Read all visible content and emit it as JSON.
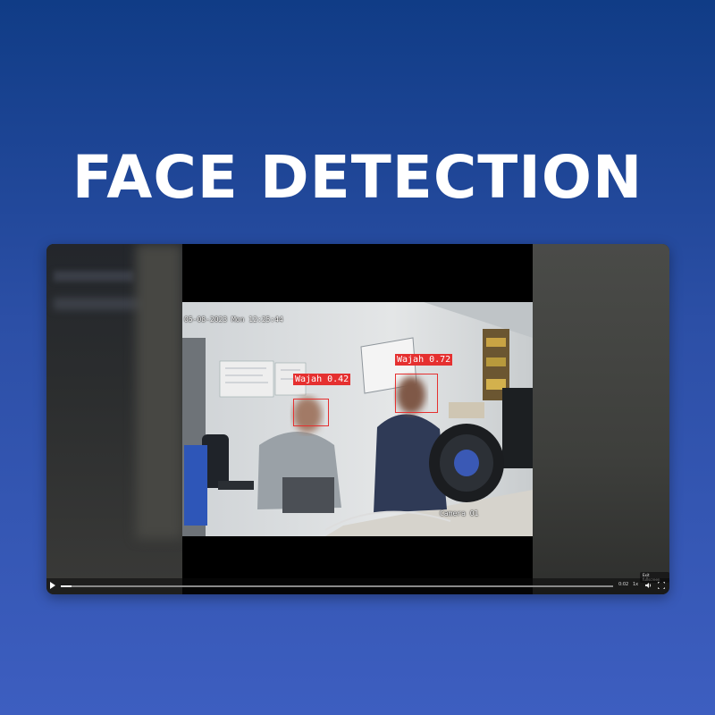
{
  "page": {
    "title": "FACE DETECTION"
  },
  "video": {
    "timestamp": "05-08-2023 Mon 12:25:44",
    "camera_label": "Camera 01",
    "detections": [
      {
        "label": "Wajah 0.42"
      },
      {
        "label": "Wajah 0.72"
      }
    ]
  },
  "player": {
    "time": "0:02",
    "speed": "1x",
    "tooltip": "Exit fullscreen",
    "progress_fraction": 0.02,
    "icons": [
      "play-icon",
      "volume-icon",
      "fullscreen-icon"
    ]
  },
  "colors": {
    "background_top": "#103c86",
    "background_bottom": "#3d5ec0",
    "detection_box": "#e53030"
  }
}
